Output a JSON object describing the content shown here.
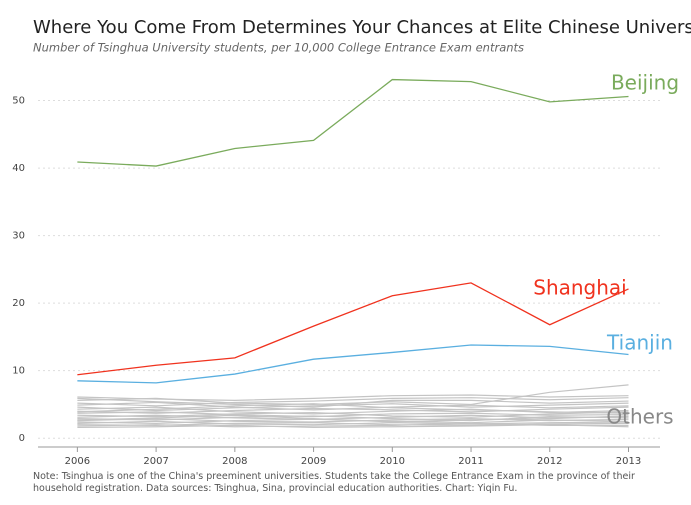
{
  "chart_data": {
    "type": "line",
    "title": "Where You Come From Determines Your Chances at Elite Chinese Universities",
    "subtitle": "Number of Tsinghua University students, per 10,000 College Entrance Exam entrants",
    "note": "Note: Tsinghua is one of the China's preeminent universities. Students take the College Entrance Exam in the province of their household registration. Data sources: Tsinghua, Sina, provincial education authorities. Chart: Yiqin Fu.",
    "x": [
      2006,
      2007,
      2008,
      2009,
      2010,
      2011,
      2012,
      2013
    ],
    "xlim": [
      2005.5,
      2013.4
    ],
    "xticks": [
      2006,
      2007,
      2008,
      2009,
      2010,
      2011,
      2012,
      2013
    ],
    "ylim": [
      -1.3,
      56
    ],
    "yticks": [
      0,
      10,
      20,
      30,
      40,
      50
    ],
    "grid": true,
    "series": [
      {
        "name": "Beijing",
        "color": "#7aab5c",
        "values": [
          40.9,
          40.3,
          42.9,
          44.1,
          53.1,
          52.8,
          49.8,
          50.6
        ]
      },
      {
        "name": "Shanghai",
        "color": "#f0321e",
        "values": [
          9.4,
          10.8,
          11.9,
          16.6,
          21.1,
          23.0,
          16.8,
          22.1
        ]
      },
      {
        "name": "Tianjin",
        "color": "#5aafe0",
        "values": [
          8.5,
          8.2,
          9.5,
          11.7,
          12.7,
          13.8,
          13.6,
          12.4
        ]
      }
    ],
    "others": {
      "name": "Others",
      "color": "#c4c4c4",
      "lines": [
        [
          6.1,
          5.8,
          5.6,
          5.9,
          6.3,
          6.4,
          6.1,
          6.3
        ],
        [
          5.6,
          5.9,
          5.2,
          5.0,
          5.4,
          5.0,
          6.8,
          7.9
        ],
        [
          5.2,
          4.8,
          5.3,
          5.5,
          5.9,
          6.0,
          5.7,
          6.0
        ],
        [
          4.9,
          5.3,
          4.6,
          4.2,
          4.6,
          4.9,
          4.5,
          4.8
        ],
        [
          4.6,
          4.1,
          4.5,
          4.8,
          5.1,
          4.6,
          4.9,
          5.2
        ],
        [
          4.3,
          4.6,
          3.9,
          3.6,
          4.0,
          4.3,
          3.8,
          4.1
        ],
        [
          4.0,
          3.7,
          4.1,
          4.4,
          4.2,
          3.9,
          4.3,
          4.6
        ],
        [
          3.7,
          3.9,
          3.5,
          3.2,
          3.6,
          3.7,
          3.4,
          3.5
        ],
        [
          3.4,
          3.2,
          3.6,
          3.8,
          3.3,
          3.1,
          3.6,
          3.9
        ],
        [
          3.1,
          3.4,
          3.0,
          2.8,
          3.1,
          3.4,
          3.0,
          3.2
        ],
        [
          2.9,
          2.7,
          3.1,
          3.3,
          2.9,
          2.6,
          3.2,
          3.0
        ],
        [
          2.6,
          2.9,
          2.5,
          2.4,
          2.7,
          2.9,
          2.6,
          2.8
        ],
        [
          2.4,
          2.2,
          2.6,
          2.8,
          2.5,
          2.3,
          2.7,
          2.5
        ],
        [
          2.2,
          2.5,
          2.1,
          2.0,
          2.3,
          2.1,
          2.3,
          2.4
        ],
        [
          2.0,
          1.9,
          2.2,
          2.3,
          2.0,
          1.9,
          2.1,
          2.2
        ],
        [
          1.8,
          2.0,
          1.7,
          1.8,
          1.9,
          2.2,
          1.9,
          1.9
        ],
        [
          5.9,
          5.4,
          5.0,
          4.6,
          5.6,
          5.6,
          5.2,
          5.5
        ],
        [
          3.9,
          4.3,
          4.8,
          5.1,
          4.5,
          4.2,
          3.9,
          3.7
        ],
        [
          2.7,
          3.0,
          3.4,
          2.9,
          2.4,
          2.7,
          2.9,
          3.3
        ],
        [
          1.6,
          1.7,
          1.9,
          1.6,
          1.7,
          1.8,
          2.0,
          1.7
        ]
      ]
    }
  }
}
